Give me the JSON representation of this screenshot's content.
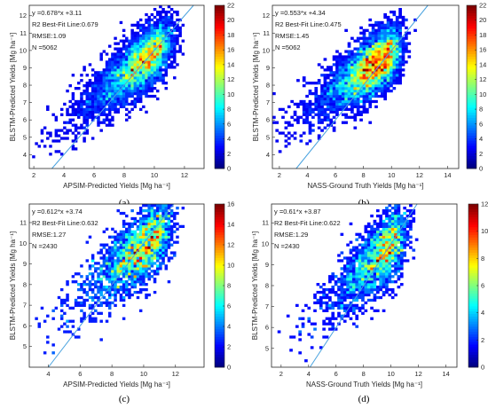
{
  "figure": {
    "panel_labels": [
      "(a)",
      "(b)",
      "(c)",
      "(d)"
    ]
  },
  "chart_data": [
    {
      "type": "heatmap",
      "title": "",
      "xlabel": "APSIM-Predicted Yields [Mg ha⁻¹]",
      "ylabel": "BLSTM-Predicted Yields [Mg ha⁻¹]",
      "xlim": [
        1.7,
        13.3
      ],
      "ylim": [
        3.2,
        12.6
      ],
      "xticks": [
        2,
        4,
        6,
        8,
        10,
        12
      ],
      "yticks": [
        4,
        5,
        6,
        7,
        8,
        9,
        10,
        11,
        12
      ],
      "colorbar": {
        "min": 0,
        "max": 22,
        "ticks": [
          0,
          2,
          4,
          6,
          8,
          10,
          12,
          14,
          16,
          18,
          20,
          22
        ]
      },
      "density": {
        "centerX": 11.0,
        "centerY": 10.8,
        "slope": 0.678,
        "intercept": 3.11
      },
      "annotations": [
        "y =0.678*x +3.11",
        "R2 Best-Fit Line:0.679",
        "RMSE:1.09",
        "N =5062"
      ],
      "fit_line": {
        "slope": 1,
        "intercept": 0,
        "color": "#4aa3df"
      }
    },
    {
      "type": "heatmap",
      "title": "",
      "xlabel": "NASS-Ground Truth Yields [Mg ha⁻¹]",
      "ylabel": "BLSTM-Predicted Yields [Mg ha⁻¹]",
      "xlim": [
        1.5,
        14.8
      ],
      "ylim": [
        3.2,
        12.6
      ],
      "xticks": [
        2,
        4,
        6,
        8,
        10,
        12,
        14
      ],
      "yticks": [
        4,
        5,
        6,
        7,
        8,
        9,
        10,
        11,
        12
      ],
      "colorbar": {
        "min": 0,
        "max": 22,
        "ticks": [
          0,
          2,
          4,
          6,
          8,
          10,
          12,
          14,
          16,
          18,
          20,
          22
        ]
      },
      "density": {
        "centerX": 10.5,
        "centerY": 10.3,
        "slope": 0.553,
        "intercept": 4.34
      },
      "annotations": [
        "y =0.553*x +4.34",
        "R2 Best-Fit Line:0.475",
        "RMSE:1.45",
        "N =5062"
      ],
      "fit_line": {
        "slope": 1,
        "intercept": 0,
        "color": "#4aa3df"
      }
    },
    {
      "type": "heatmap",
      "title": "",
      "xlabel": "APSIM-Predicted Yields [Mg ha⁻¹]",
      "ylabel": "BLSTM-Predicted Yields [Mg ha⁻¹]",
      "xlim": [
        2.8,
        13.8
      ],
      "ylim": [
        4.0,
        11.9
      ],
      "xticks": [
        4,
        6,
        8,
        10,
        12
      ],
      "yticks": [
        5,
        6,
        7,
        8,
        9,
        10,
        11
      ],
      "colorbar": {
        "min": 0,
        "max": 16,
        "ticks": [
          0,
          2,
          4,
          6,
          8,
          10,
          12,
          14,
          16
        ]
      },
      "density": {
        "centerX": 11.5,
        "centerY": 11.0,
        "slope": 0.612,
        "intercept": 3.74
      },
      "annotations": [
        "y =0.612*x +3.74",
        "R2 Best-Fit Line:0.632",
        "RMSE:1.27",
        "N =2430"
      ],
      "fit_line": {
        "slope": 1,
        "intercept": 0,
        "color": "#4aa3df"
      }
    },
    {
      "type": "heatmap",
      "title": "",
      "xlabel": "NASS-Ground Truth Yields [Mg ha⁻¹]",
      "ylabel": "BLSTM-Predicted Yields [Mg ha⁻¹]",
      "xlim": [
        1.3,
        14.8
      ],
      "ylim": [
        4.1,
        11.9
      ],
      "xticks": [
        2,
        4,
        6,
        8,
        10,
        12,
        14
      ],
      "yticks": [
        5,
        6,
        7,
        8,
        9,
        10,
        11
      ],
      "colorbar": {
        "min": 0,
        "max": 12,
        "ticks": [
          0,
          2,
          4,
          6,
          8,
          10,
          12
        ]
      },
      "density": {
        "centerX": 11.0,
        "centerY": 10.8,
        "slope": 0.61,
        "intercept": 3.87
      },
      "annotations": [
        "y =0.61*x +3.87",
        "R2 Best-Fit Line:0.622",
        "RMSE:1.29",
        "N =2430"
      ],
      "fit_line": {
        "slope": 1,
        "intercept": 0,
        "color": "#4aa3df"
      }
    }
  ]
}
